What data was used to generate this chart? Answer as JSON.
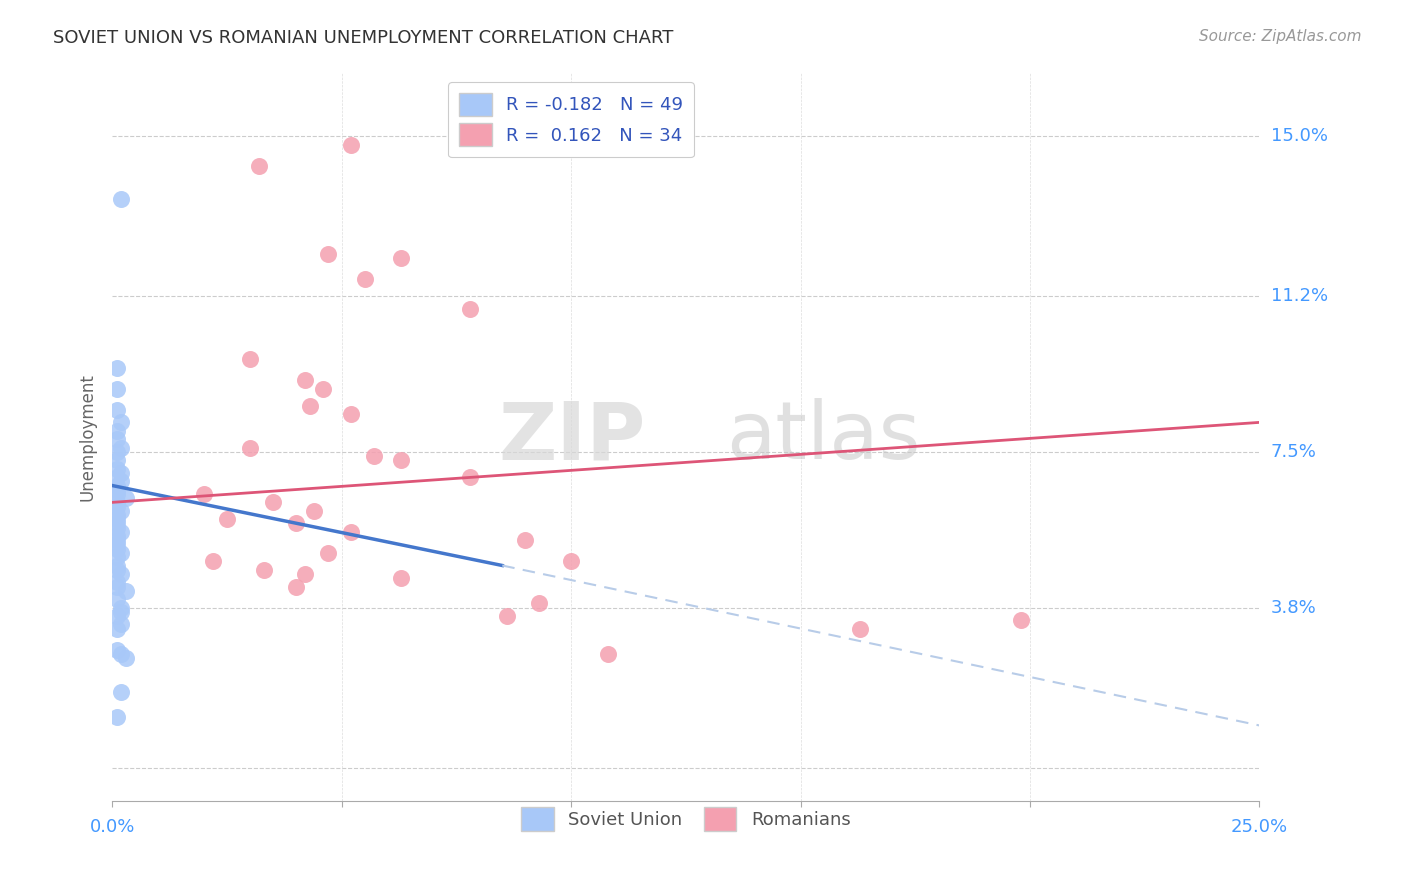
{
  "title": "SOVIET UNION VS ROMANIAN UNEMPLOYMENT CORRELATION CHART",
  "source": "Source: ZipAtlas.com",
  "ylabel": "Unemployment",
  "yticks": [
    0.0,
    0.038,
    0.075,
    0.112,
    0.15
  ],
  "ytick_labels": [
    "",
    "3.8%",
    "7.5%",
    "11.2%",
    "15.0%"
  ],
  "xmin": 0.0,
  "xmax": 0.25,
  "ymin": -0.008,
  "ymax": 0.165,
  "legend_r1": "R = -0.182   N = 49",
  "legend_r2": "R =  0.162   N = 34",
  "color_soviet": "#a8c8f8",
  "color_romanian": "#f4a0b0",
  "color_soviet_line": "#4477cc",
  "color_romanian_line": "#dd5577",
  "color_soviet_line_ext": "#b8cce8",
  "watermark_zip": "ZIP",
  "watermark_atlas": "atlas",
  "soviet_line": [
    [
      0.0,
      0.067
    ],
    [
      0.085,
      0.048
    ]
  ],
  "soviet_line_dash": [
    [
      0.085,
      0.048
    ],
    [
      0.25,
      0.01
    ]
  ],
  "romanian_line": [
    [
      0.0,
      0.063
    ],
    [
      0.25,
      0.082
    ]
  ],
  "soviet_points": [
    [
      0.002,
      0.135
    ],
    [
      0.001,
      0.095
    ],
    [
      0.001,
      0.09
    ],
    [
      0.001,
      0.085
    ],
    [
      0.002,
      0.082
    ],
    [
      0.001,
      0.08
    ],
    [
      0.001,
      0.078
    ],
    [
      0.002,
      0.076
    ],
    [
      0.001,
      0.075
    ],
    [
      0.001,
      0.073
    ],
    [
      0.001,
      0.071
    ],
    [
      0.002,
      0.07
    ],
    [
      0.001,
      0.069
    ],
    [
      0.002,
      0.068
    ],
    [
      0.001,
      0.067
    ],
    [
      0.001,
      0.066
    ],
    [
      0.001,
      0.065
    ],
    [
      0.003,
      0.064
    ],
    [
      0.001,
      0.063
    ],
    [
      0.001,
      0.062
    ],
    [
      0.002,
      0.061
    ],
    [
      0.001,
      0.06
    ],
    [
      0.001,
      0.059
    ],
    [
      0.001,
      0.058
    ],
    [
      0.001,
      0.057
    ],
    [
      0.002,
      0.056
    ],
    [
      0.001,
      0.055
    ],
    [
      0.001,
      0.054
    ],
    [
      0.001,
      0.053
    ],
    [
      0.001,
      0.052
    ],
    [
      0.002,
      0.051
    ],
    [
      0.001,
      0.05
    ],
    [
      0.001,
      0.048
    ],
    [
      0.001,
      0.047
    ],
    [
      0.002,
      0.046
    ],
    [
      0.001,
      0.044
    ],
    [
      0.001,
      0.043
    ],
    [
      0.003,
      0.042
    ],
    [
      0.001,
      0.04
    ],
    [
      0.002,
      0.038
    ],
    [
      0.002,
      0.037
    ],
    [
      0.001,
      0.036
    ],
    [
      0.002,
      0.034
    ],
    [
      0.001,
      0.033
    ],
    [
      0.001,
      0.028
    ],
    [
      0.002,
      0.027
    ],
    [
      0.003,
      0.026
    ],
    [
      0.002,
      0.018
    ],
    [
      0.001,
      0.012
    ]
  ],
  "romanian_points": [
    [
      0.032,
      0.143
    ],
    [
      0.052,
      0.148
    ],
    [
      0.047,
      0.122
    ],
    [
      0.063,
      0.121
    ],
    [
      0.055,
      0.116
    ],
    [
      0.078,
      0.109
    ],
    [
      0.03,
      0.097
    ],
    [
      0.042,
      0.092
    ],
    [
      0.046,
      0.09
    ],
    [
      0.043,
      0.086
    ],
    [
      0.052,
      0.084
    ],
    [
      0.03,
      0.076
    ],
    [
      0.057,
      0.074
    ],
    [
      0.063,
      0.073
    ],
    [
      0.078,
      0.069
    ],
    [
      0.02,
      0.065
    ],
    [
      0.035,
      0.063
    ],
    [
      0.044,
      0.061
    ],
    [
      0.025,
      0.059
    ],
    [
      0.04,
      0.058
    ],
    [
      0.052,
      0.056
    ],
    [
      0.09,
      0.054
    ],
    [
      0.047,
      0.051
    ],
    [
      0.022,
      0.049
    ],
    [
      0.1,
      0.049
    ],
    [
      0.033,
      0.047
    ],
    [
      0.042,
      0.046
    ],
    [
      0.063,
      0.045
    ],
    [
      0.04,
      0.043
    ],
    [
      0.093,
      0.039
    ],
    [
      0.086,
      0.036
    ],
    [
      0.198,
      0.035
    ],
    [
      0.163,
      0.033
    ],
    [
      0.108,
      0.027
    ]
  ]
}
